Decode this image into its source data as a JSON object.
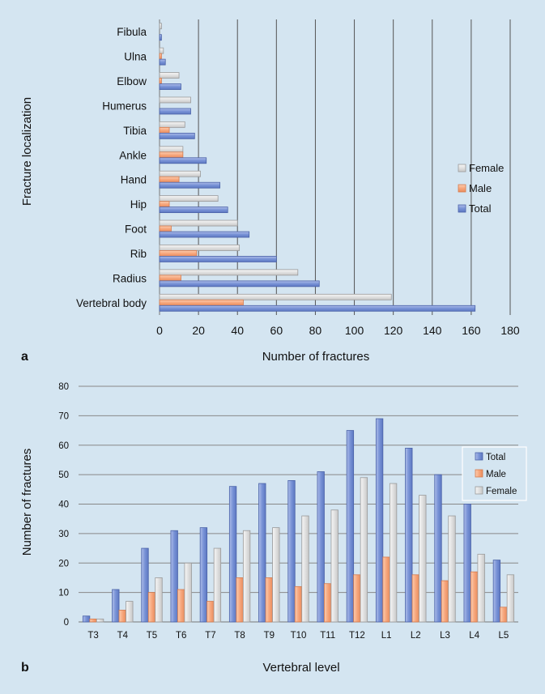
{
  "colors": {
    "background": "#d4e5f1",
    "total": "#7892d6",
    "male": "#f7a77d",
    "female": "#dcdcdc",
    "grid": "#555555"
  },
  "chart_data": [
    {
      "type": "bar",
      "orientation": "horizontal",
      "panel": "a",
      "categories": [
        "Fibula",
        "Ulna",
        "Elbow",
        "Humerus",
        "Tibia",
        "Ankle",
        "Hand",
        "Hip",
        "Foot",
        "Rib",
        "Radius",
        "Vertebral body"
      ],
      "series": [
        {
          "name": "Female",
          "values": [
            1,
            2,
            10,
            16,
            13,
            12,
            21,
            30,
            40,
            41,
            71,
            119
          ]
        },
        {
          "name": "Male",
          "values": [
            0,
            1,
            1,
            0,
            5,
            12,
            10,
            5,
            6,
            19,
            11,
            43
          ]
        },
        {
          "name": "Total",
          "values": [
            1,
            3,
            11,
            16,
            18,
            24,
            31,
            35,
            46,
            60,
            82,
            162
          ]
        }
      ],
      "xlabel": "Number of fractures",
      "ylabel": "Fracture localization",
      "xlim": [
        0,
        180
      ],
      "xticks": [
        0,
        20,
        40,
        60,
        80,
        100,
        120,
        140,
        160,
        180
      ],
      "legend": [
        "Female",
        "Male",
        "Total"
      ],
      "legend_position": "right"
    },
    {
      "type": "bar",
      "orientation": "vertical",
      "panel": "b",
      "categories": [
        "T3",
        "T4",
        "T5",
        "T6",
        "T7",
        "T8",
        "T9",
        "T10",
        "T11",
        "T12",
        "L1",
        "L2",
        "L3",
        "L4",
        "L5"
      ],
      "series": [
        {
          "name": "Total",
          "values": [
            2,
            11,
            25,
            31,
            32,
            46,
            47,
            48,
            51,
            65,
            69,
            59,
            50,
            40,
            21
          ]
        },
        {
          "name": "Male",
          "values": [
            1,
            4,
            10,
            11,
            7,
            15,
            15,
            12,
            13,
            16,
            22,
            16,
            14,
            17,
            5
          ]
        },
        {
          "name": "Female",
          "values": [
            1,
            7,
            15,
            20,
            25,
            31,
            32,
            36,
            38,
            49,
            47,
            43,
            36,
            23,
            16
          ]
        }
      ],
      "xlabel": "Vertebral level",
      "ylabel": "Number of fractures",
      "ylim": [
        0,
        80
      ],
      "yticks": [
        0,
        10,
        20,
        30,
        40,
        50,
        60,
        70,
        80
      ],
      "legend": [
        "Total",
        "Male",
        "Female"
      ],
      "legend_position": "top-right"
    }
  ]
}
